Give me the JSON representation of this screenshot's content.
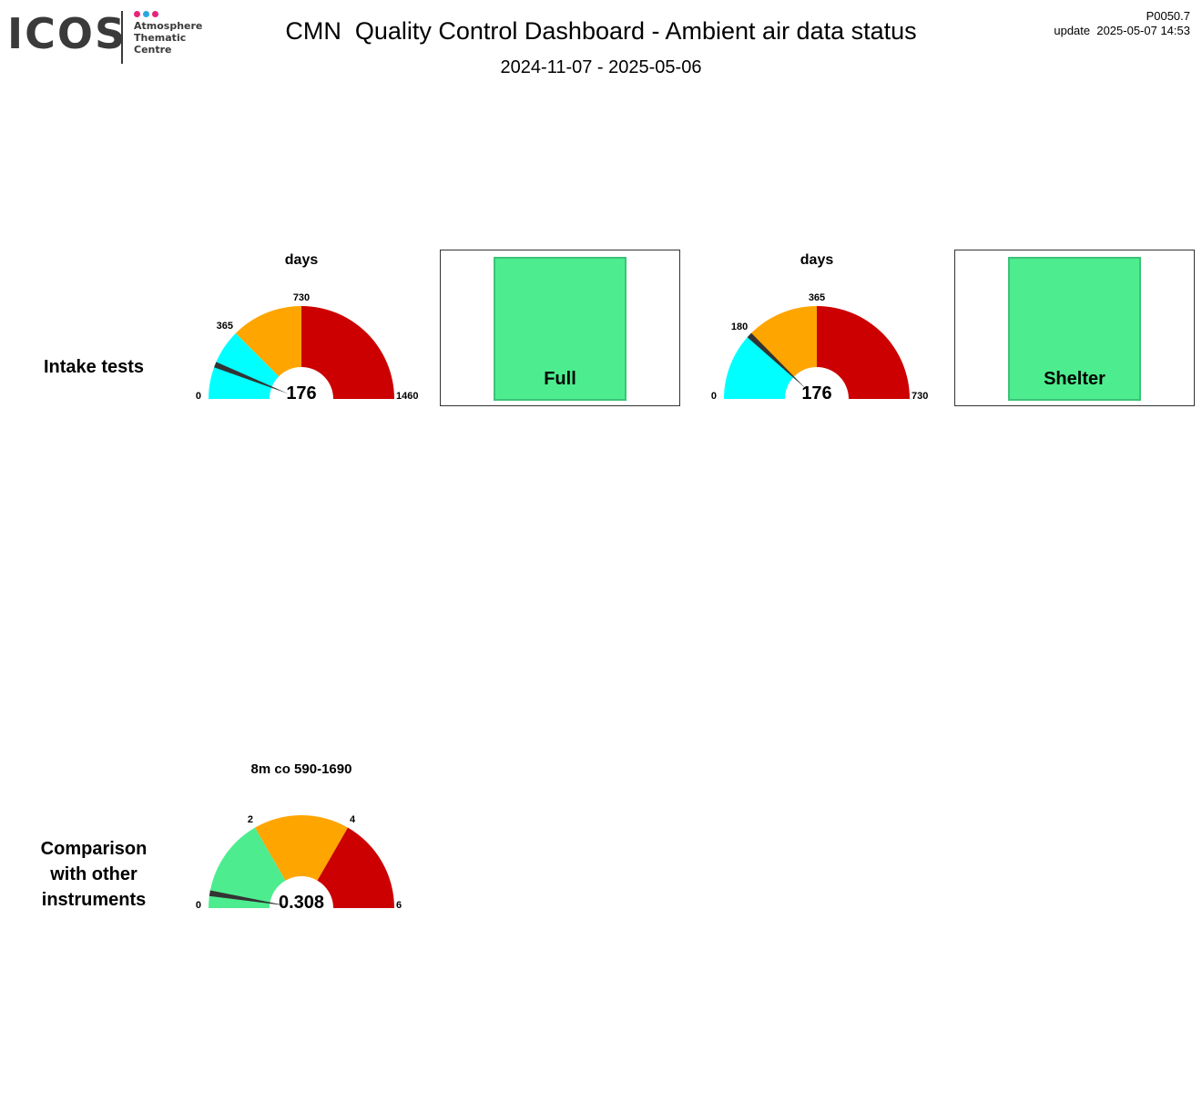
{
  "header": {
    "logo": {
      "brand": "ICOS",
      "line1": "Atmosphere",
      "line2": "Thematic",
      "line3": "Centre",
      "dot_colors": [
        "#e6247a",
        "#2ba7e0",
        "#e6247a"
      ]
    },
    "title": "CMN  Quality Control Dashboard - Ambient air data status",
    "date_range": "2024-11-07 - 2025-05-06",
    "version": "P0050.7",
    "update": "update  2025-05-07 14:53"
  },
  "rows": {
    "intake_label": "Intake tests",
    "compare_label": "Comparison\nwith other\ninstruments"
  },
  "gauges": [
    {
      "id": "gauge-intake-1",
      "title": "days",
      "value": 176,
      "value_label": "176",
      "min": 0,
      "max": 1460,
      "ticks": [
        {
          "value": 0,
          "label": "0"
        },
        {
          "value": 365,
          "label": "365"
        },
        {
          "value": 730,
          "label": "730"
        },
        {
          "value": 1460,
          "label": "1460"
        }
      ],
      "bands": [
        {
          "from": 0,
          "to": 365,
          "color": "#00ffff"
        },
        {
          "from": 365,
          "to": 730,
          "color": "#ffa500"
        },
        {
          "from": 730,
          "to": 1460,
          "color": "#cc0000"
        }
      ]
    },
    {
      "id": "gauge-intake-2",
      "title": "days",
      "value": 176,
      "value_label": "176",
      "min": 0,
      "max": 730,
      "ticks": [
        {
          "value": 0,
          "label": "0"
        },
        {
          "value": 180,
          "label": "180"
        },
        {
          "value": 365,
          "label": "365"
        },
        {
          "value": 730,
          "label": "730"
        }
      ],
      "bands": [
        {
          "from": 0,
          "to": 180,
          "color": "#00ffff"
        },
        {
          "from": 180,
          "to": 365,
          "color": "#ffa500"
        },
        {
          "from": 365,
          "to": 730,
          "color": "#cc0000"
        }
      ]
    },
    {
      "id": "gauge-compare",
      "title": "8m co 590-1690",
      "value": 0.308,
      "value_label": "0.308",
      "min": 0,
      "max": 6,
      "ticks": [
        {
          "value": 0,
          "label": "0"
        },
        {
          "value": 2,
          "label": "2"
        },
        {
          "value": 4,
          "label": "4"
        },
        {
          "value": 6,
          "label": "6"
        }
      ],
      "bands": [
        {
          "from": 0,
          "to": 2,
          "color": "#4ded8f"
        },
        {
          "from": 2,
          "to": 4,
          "color": "#ffa500"
        },
        {
          "from": 4,
          "to": 6,
          "color": "#cc0000"
        }
      ]
    }
  ],
  "status_boxes": [
    {
      "label": "Full",
      "color": "#4ded8f"
    },
    {
      "label": "Shelter",
      "color": "#4ded8f"
    }
  ],
  "needle_color": "#333333"
}
